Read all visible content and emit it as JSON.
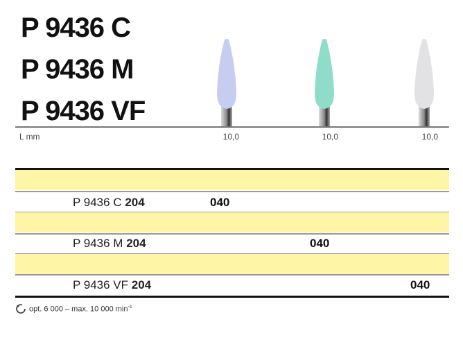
{
  "titles": [
    "P 9436 C",
    "P 9436 M",
    "P 9436 VF"
  ],
  "colors": {
    "c": "#c5cdf0",
    "m": "#8fdcc9",
    "vf": "#e2e2e4",
    "row_bg": "#fff5a6"
  },
  "length_label": "L mm",
  "lengths": [
    "10,0",
    "10,0",
    "10,0"
  ],
  "rows": [
    {
      "prefix": "P 9436 C",
      "suffix": "204",
      "value": "040"
    },
    {
      "prefix": "P 9436 M",
      "suffix": "204",
      "value": "040"
    },
    {
      "prefix": "P 9436 VF",
      "suffix": "204",
      "value": "040"
    }
  ],
  "footer": {
    "icon": "rotation-speed-icon",
    "text": "opt. 6 000 – max. 10 000 min",
    "sup": "-1"
  }
}
